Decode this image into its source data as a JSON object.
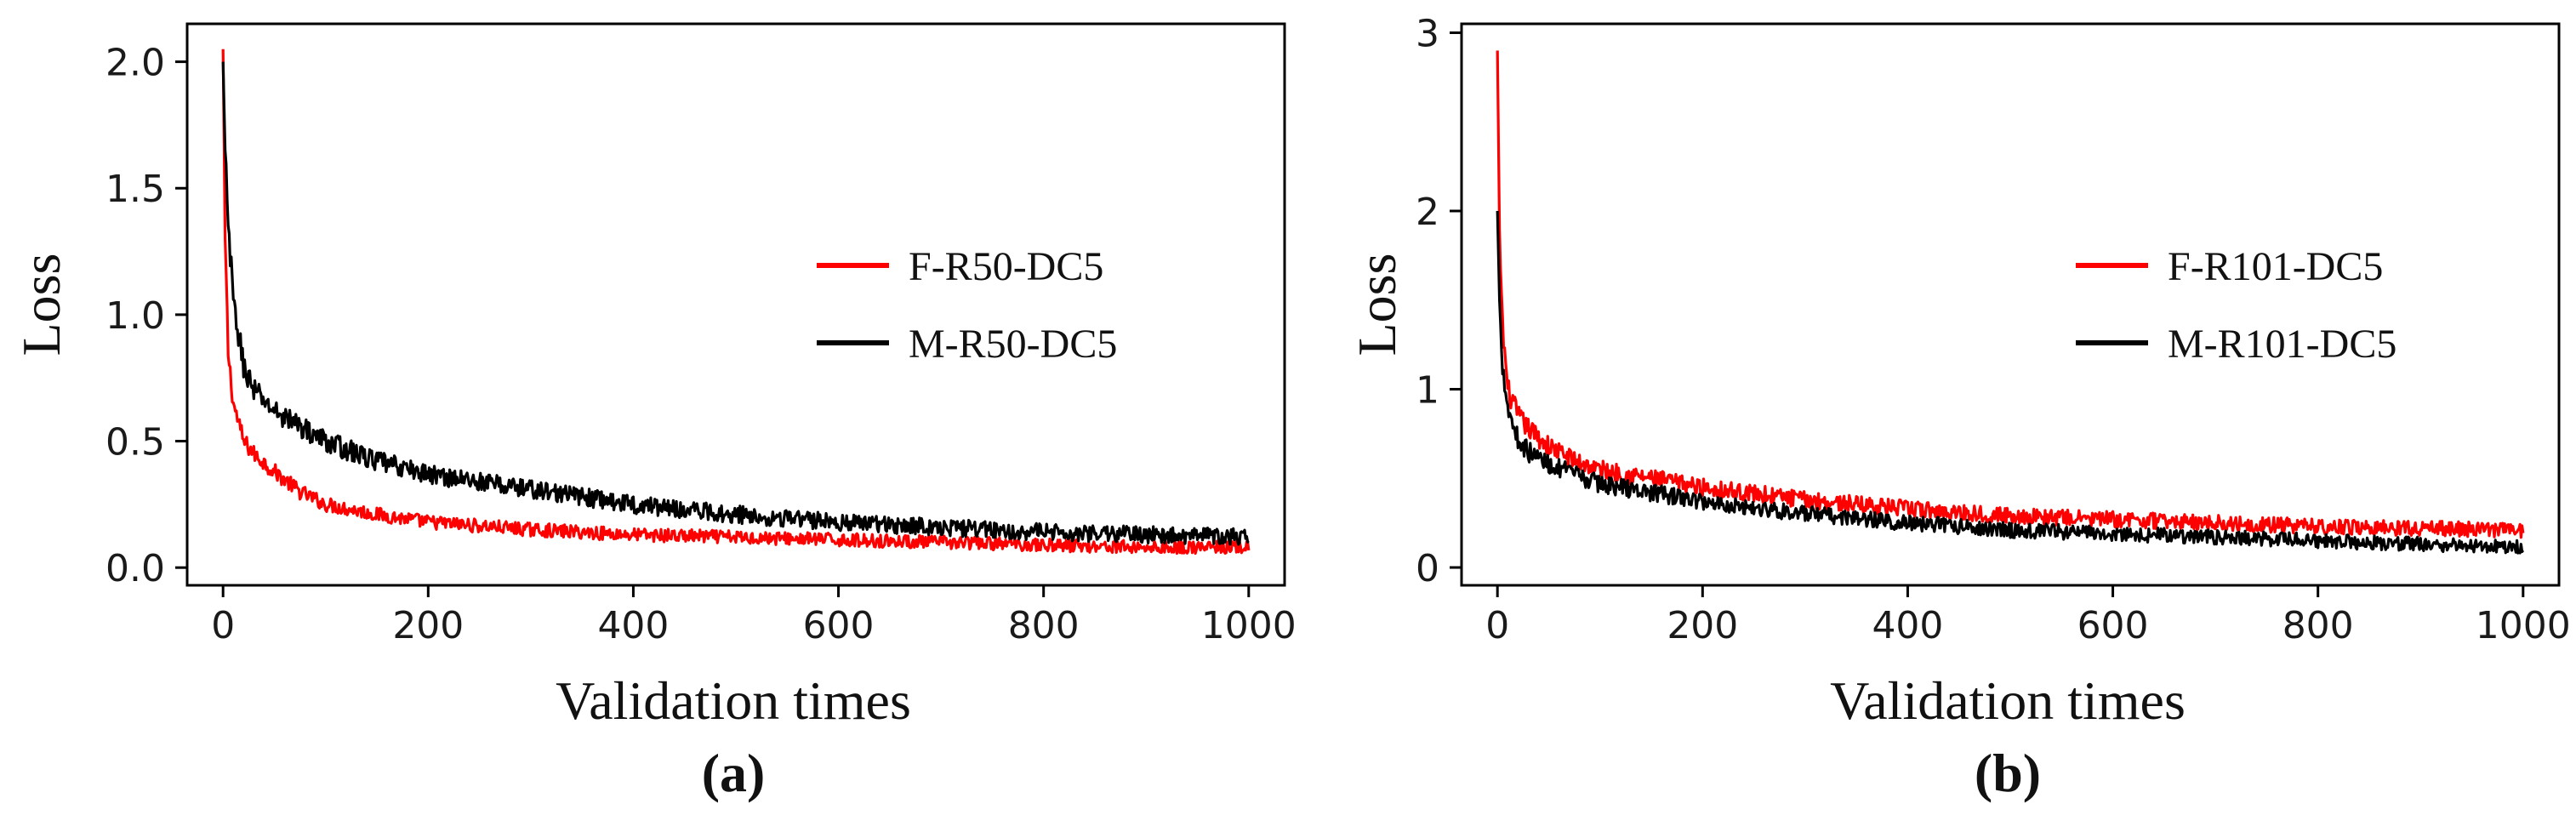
{
  "chart_data": [
    {
      "type": "line",
      "panel_label": "(a)",
      "xlabel": "Validation times",
      "ylabel": "Loss",
      "xlim": [
        -35,
        1035
      ],
      "ylim": [
        -0.07,
        2.15
      ],
      "xticks": [
        0,
        200,
        400,
        600,
        800,
        1000
      ],
      "yticks": [
        0.0,
        0.5,
        1.0,
        1.5,
        2.0
      ],
      "ytick_labels": [
        "0.0",
        "0.5",
        "1.0",
        "1.5",
        "2.0"
      ],
      "grid": false,
      "legend_position": "center-right",
      "series": [
        {
          "name": "F-R50-DC5",
          "color": "#ff0000",
          "x": [
            0,
            2,
            5,
            10,
            20,
            30,
            50,
            75,
            100,
            150,
            200,
            300,
            400,
            500,
            600,
            700,
            800,
            900,
            1000
          ],
          "y": [
            2.05,
            1.3,
            0.85,
            0.65,
            0.5,
            0.45,
            0.38,
            0.3,
            0.25,
            0.21,
            0.18,
            0.15,
            0.13,
            0.12,
            0.11,
            0.1,
            0.09,
            0.08,
            0.08
          ],
          "noise": 0.04
        },
        {
          "name": "M-R50-DC5",
          "color": "#000000",
          "x": [
            0,
            2,
            5,
            10,
            20,
            30,
            50,
            75,
            100,
            150,
            200,
            300,
            400,
            500,
            600,
            700,
            800,
            900,
            1000
          ],
          "y": [
            2.0,
            1.65,
            1.35,
            1.05,
            0.8,
            0.7,
            0.62,
            0.56,
            0.5,
            0.42,
            0.37,
            0.31,
            0.25,
            0.21,
            0.18,
            0.16,
            0.14,
            0.13,
            0.12
          ],
          "noise": 0.05
        }
      ]
    },
    {
      "type": "line",
      "panel_label": "(b)",
      "xlabel": "Validation times",
      "ylabel": "Loss",
      "xlim": [
        -35,
        1035
      ],
      "ylim": [
        -0.1,
        3.05
      ],
      "xticks": [
        0,
        200,
        400,
        600,
        800,
        1000
      ],
      "yticks": [
        0,
        1,
        2,
        3
      ],
      "ytick_labels": [
        "0",
        "1",
        "2",
        "3"
      ],
      "grid": false,
      "legend_position": "center-right",
      "series": [
        {
          "name": "F-R101-DC5",
          "color": "#ff0000",
          "x": [
            0,
            2,
            5,
            10,
            20,
            30,
            50,
            75,
            100,
            150,
            200,
            300,
            400,
            500,
            600,
            700,
            800,
            900,
            1000
          ],
          "y": [
            2.9,
            1.9,
            1.35,
            1.0,
            0.85,
            0.78,
            0.68,
            0.6,
            0.55,
            0.5,
            0.45,
            0.38,
            0.33,
            0.29,
            0.27,
            0.25,
            0.23,
            0.22,
            0.21
          ],
          "noise": 0.06
        },
        {
          "name": "M-R101-DC5",
          "color": "#000000",
          "x": [
            0,
            2,
            5,
            10,
            20,
            30,
            50,
            75,
            100,
            150,
            200,
            300,
            400,
            500,
            600,
            700,
            800,
            900,
            1000
          ],
          "y": [
            2.0,
            1.5,
            1.15,
            0.9,
            0.72,
            0.65,
            0.58,
            0.52,
            0.47,
            0.42,
            0.37,
            0.3,
            0.25,
            0.21,
            0.19,
            0.17,
            0.15,
            0.13,
            0.12
          ],
          "noise": 0.06
        }
      ]
    }
  ]
}
